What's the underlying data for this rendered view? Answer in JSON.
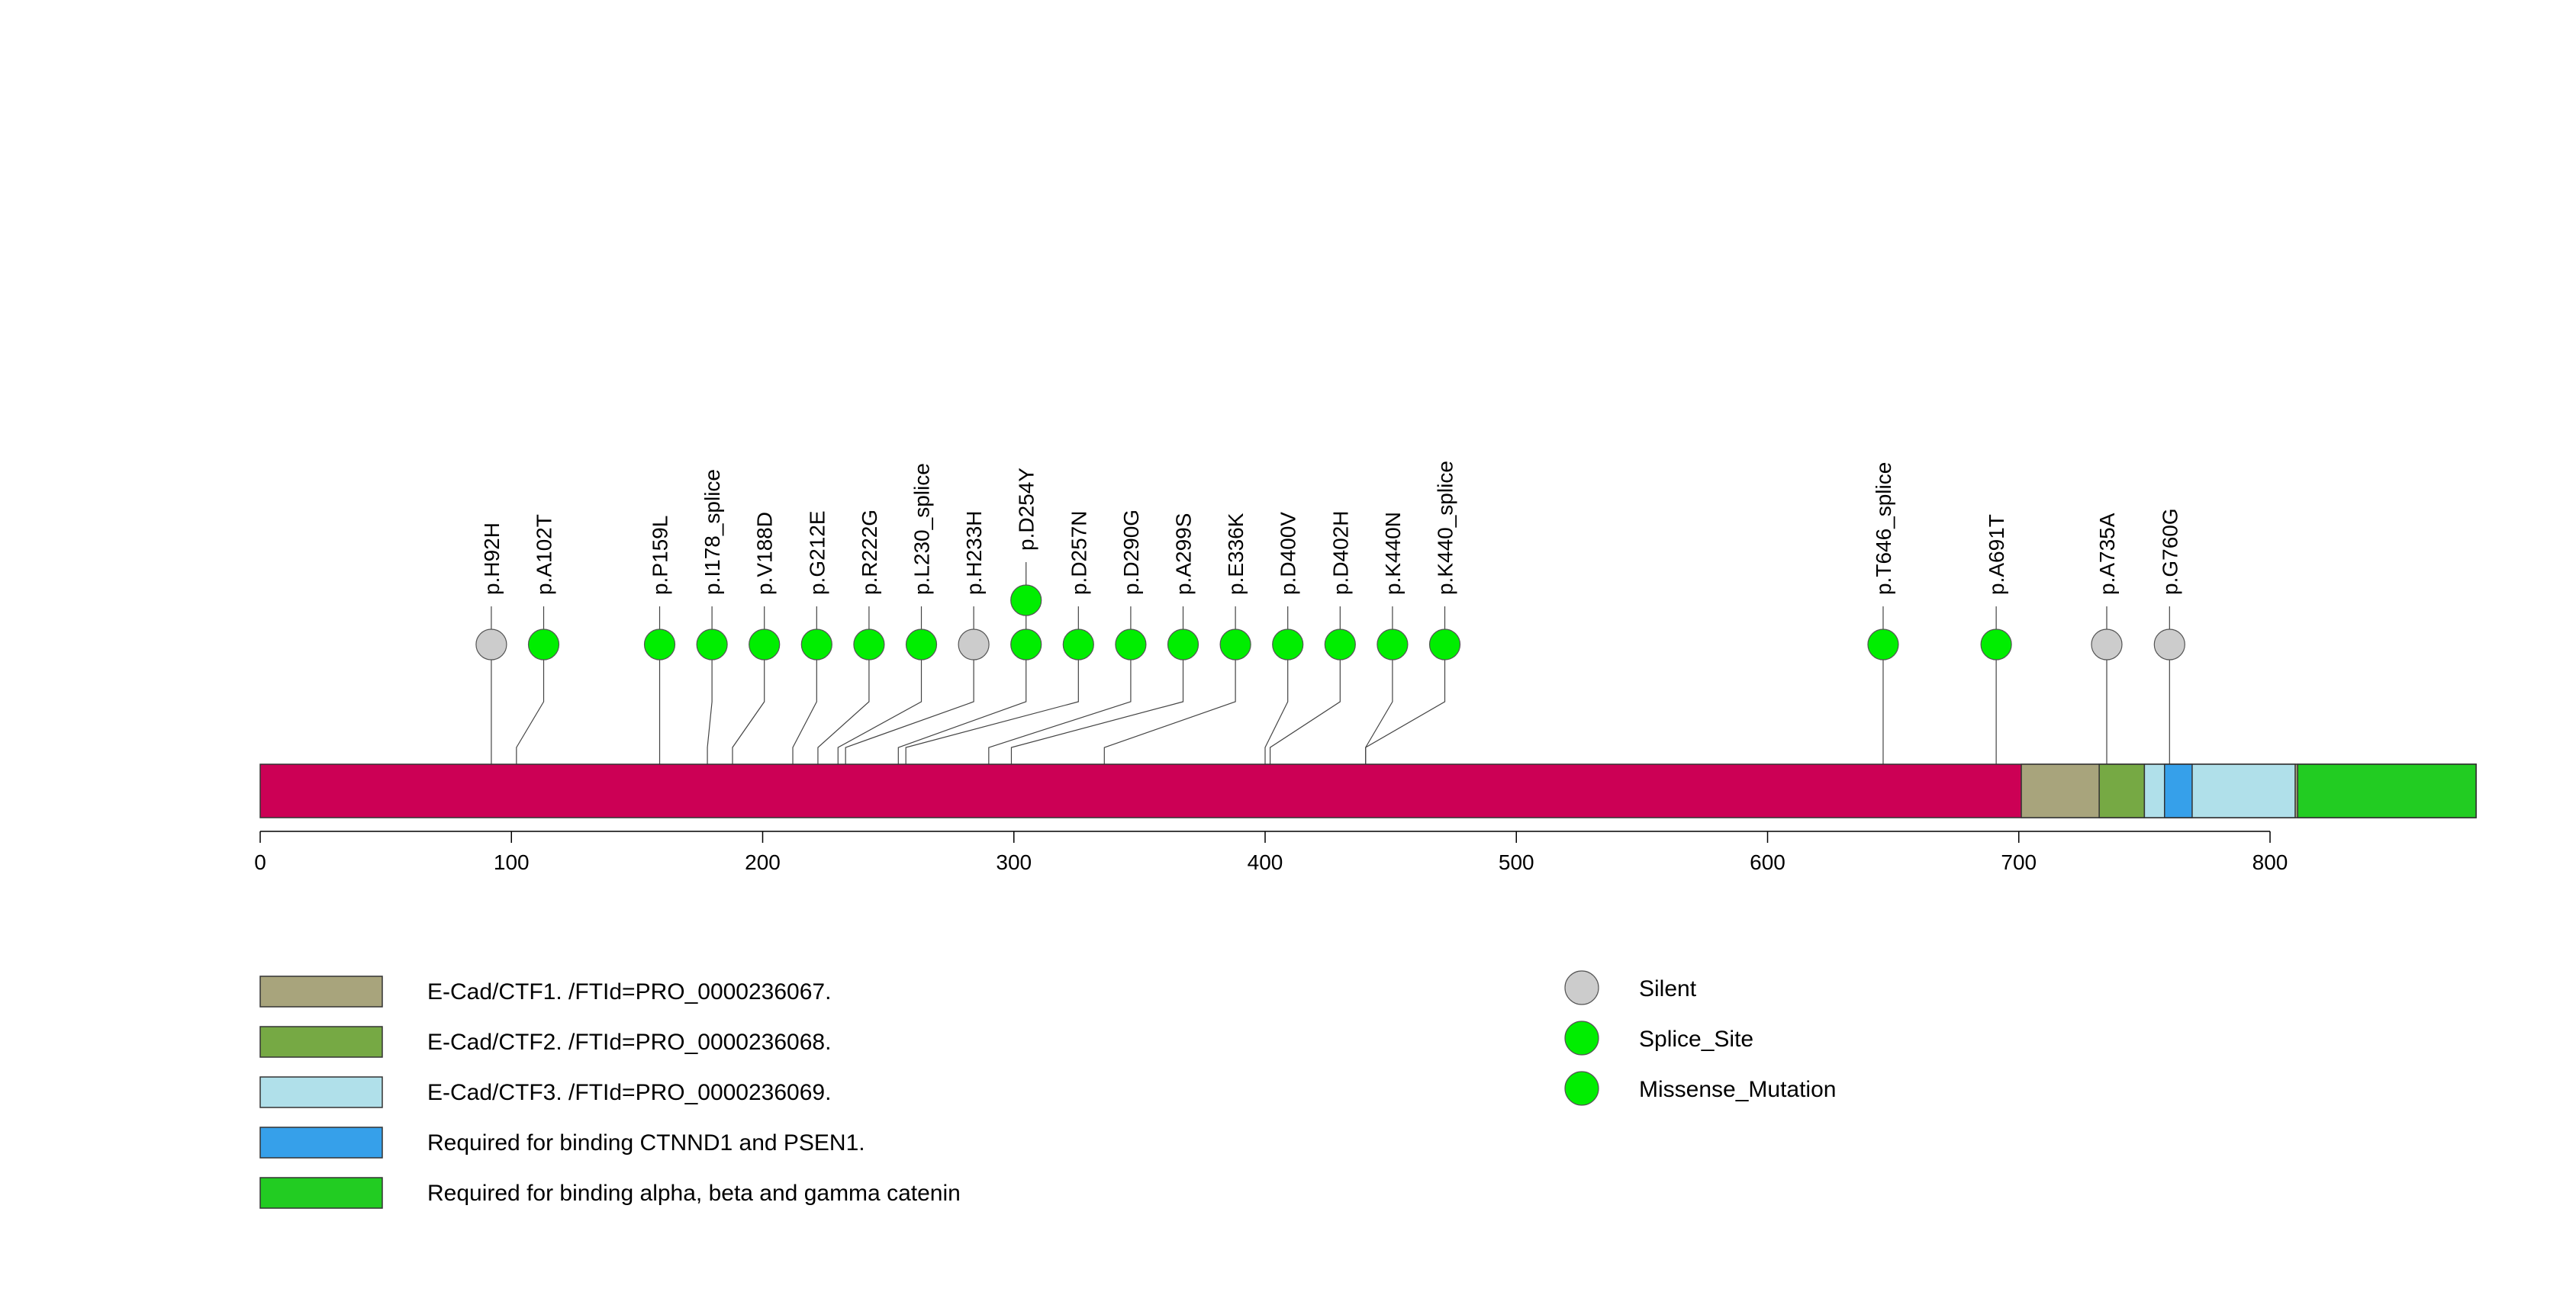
{
  "chart_data": {
    "type": "lollipop",
    "protein_length": 882,
    "x_ticks": [
      0,
      100,
      200,
      300,
      400,
      500,
      600,
      700,
      800
    ],
    "backbone_color": "#cc0055",
    "mutations": [
      {
        "label": "p.H92H",
        "pos": 92,
        "count": 1,
        "type": "Silent"
      },
      {
        "label": "p.A102T",
        "pos": 102,
        "count": 1,
        "type": "Missense_Mutation"
      },
      {
        "label": "p.P159L",
        "pos": 159,
        "count": 1,
        "type": "Missense_Mutation"
      },
      {
        "label": "p.I178_splice",
        "pos": 178,
        "count": 1,
        "type": "Splice_Site"
      },
      {
        "label": "p.V188D",
        "pos": 188,
        "count": 1,
        "type": "Missense_Mutation"
      },
      {
        "label": "p.G212E",
        "pos": 212,
        "count": 1,
        "type": "Missense_Mutation"
      },
      {
        "label": "p.R222G",
        "pos": 222,
        "count": 1,
        "type": "Missense_Mutation"
      },
      {
        "label": "p.L230_splice",
        "pos": 230,
        "count": 1,
        "type": "Splice_Site"
      },
      {
        "label": "p.H233H",
        "pos": 233,
        "count": 1,
        "type": "Silent"
      },
      {
        "label": "p.D254Y",
        "pos": 254,
        "count": 2,
        "type": "Missense_Mutation"
      },
      {
        "label": "p.D257N",
        "pos": 257,
        "count": 1,
        "type": "Missense_Mutation"
      },
      {
        "label": "p.D290G",
        "pos": 290,
        "count": 1,
        "type": "Missense_Mutation"
      },
      {
        "label": "p.A299S",
        "pos": 299,
        "count": 1,
        "type": "Missense_Mutation"
      },
      {
        "label": "p.E336K",
        "pos": 336,
        "count": 1,
        "type": "Missense_Mutation"
      },
      {
        "label": "p.D400V",
        "pos": 400,
        "count": 1,
        "type": "Missense_Mutation"
      },
      {
        "label": "p.D402H",
        "pos": 402,
        "count": 1,
        "type": "Missense_Mutation"
      },
      {
        "label": "p.K440N",
        "pos": 440,
        "count": 1,
        "type": "Missense_Mutation"
      },
      {
        "label": "p.K440_splice",
        "pos": 440,
        "count": 1,
        "type": "Splice_Site"
      },
      {
        "label": "p.T646_splice",
        "pos": 646,
        "count": 1,
        "type": "Splice_Site"
      },
      {
        "label": "p.A691T",
        "pos": 691,
        "count": 1,
        "type": "Missense_Mutation"
      },
      {
        "label": "p.A735A",
        "pos": 735,
        "count": 1,
        "type": "Silent"
      },
      {
        "label": "p.G760G",
        "pos": 760,
        "count": 1,
        "type": "Silent"
      }
    ],
    "regions": [
      {
        "name": "E-Cad/CTF1. /FTId=PRO_0000236067.",
        "start": 701,
        "end": 882,
        "color": "#a8a47c"
      },
      {
        "name": "E-Cad/CTF2. /FTId=PRO_0000236068.",
        "start": 732,
        "end": 750,
        "color": "#76a944"
      },
      {
        "name": "E-Cad/CTF3. /FTId=PRO_0000236069.",
        "start": 750,
        "end": 810,
        "color": "#b0e0ea"
      },
      {
        "name": "Required for binding CTNND1 and PSEN1.",
        "start": 758,
        "end": 769,
        "color": "#36a0ea"
      },
      {
        "name": "Required for binding alpha, beta and gamma catenin",
        "start": 811,
        "end": 882,
        "color": "#22cc22"
      }
    ],
    "mutation_types": [
      {
        "name": "Silent",
        "color": "#cccccc"
      },
      {
        "name": "Splice_Site",
        "color": "#00ee00"
      },
      {
        "name": "Missense_Mutation",
        "color": "#00ee00"
      }
    ]
  }
}
